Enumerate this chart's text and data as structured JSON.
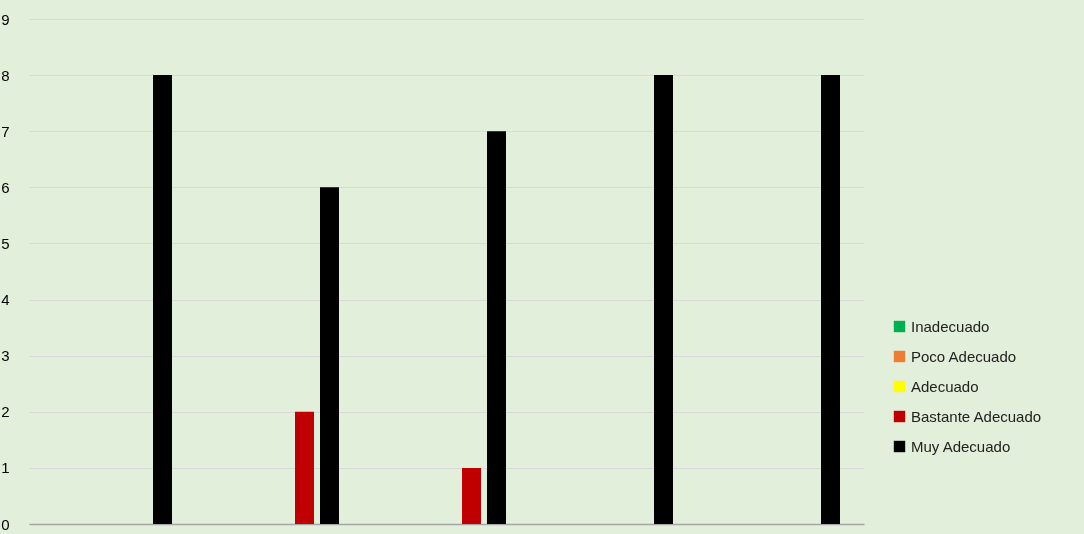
{
  "chart_data": {
    "type": "bar",
    "categories": [
      null,
      null,
      null,
      null,
      null
    ],
    "series": [
      {
        "name": "Inadecuado",
        "color": "#00b050",
        "values": [
          0,
          0,
          0,
          0,
          0
        ]
      },
      {
        "name": "Poco Adecuado",
        "color": "#ed7d31",
        "values": [
          0,
          0,
          0,
          0,
          0
        ]
      },
      {
        "name": "Adecuado",
        "color": "#ffff00",
        "values": [
          0,
          0,
          0,
          0,
          0
        ]
      },
      {
        "name": "Bastante Adecuado",
        "color": "#c00000",
        "values": [
          0,
          2,
          1,
          0,
          0
        ]
      },
      {
        "name": "Muy Adecuado",
        "color": "#000000",
        "values": [
          8,
          6,
          7,
          8,
          8
        ]
      }
    ],
    "ylim": [
      0,
      9
    ],
    "yticks": [
      0,
      1,
      2,
      3,
      4,
      5,
      6,
      7,
      8,
      9
    ],
    "grid": "y",
    "legend": "right",
    "tick_labels": "y"
  }
}
